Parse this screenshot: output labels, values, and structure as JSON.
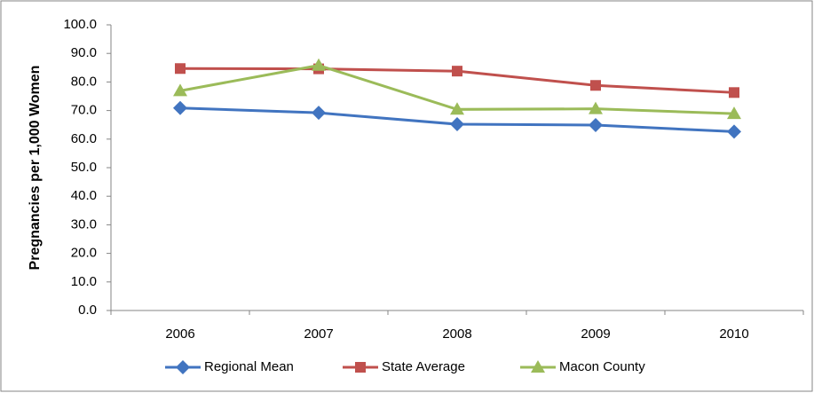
{
  "chart_data": {
    "type": "line",
    "y_label": "Pregnancies per 1,000 Women",
    "categories": [
      "2006",
      "2007",
      "2008",
      "2009",
      "2010"
    ],
    "series": [
      {
        "name": "Regional Mean",
        "color": "#4174c0",
        "marker": "diamond",
        "values": [
          70.9,
          69.2,
          65.2,
          64.9,
          62.6
        ]
      },
      {
        "name": "State Average",
        "color": "#c0504d",
        "marker": "square",
        "values": [
          84.7,
          84.6,
          83.8,
          78.8,
          76.3
        ]
      },
      {
        "name": "Macon County",
        "color": "#9bbb59",
        "marker": "triangle",
        "values": [
          76.9,
          85.8,
          70.4,
          70.6,
          68.9
        ]
      }
    ],
    "ylim": [
      0,
      100
    ],
    "yticks": [
      {
        "value": 0,
        "label": "0.0"
      },
      {
        "value": 10,
        "label": "10.0"
      },
      {
        "value": 20,
        "label": "20.0"
      },
      {
        "value": 30,
        "label": "30.0"
      },
      {
        "value": 40,
        "label": "40.0"
      },
      {
        "value": 50,
        "label": "50.0"
      },
      {
        "value": 60,
        "label": "60.0"
      },
      {
        "value": 70,
        "label": "70.0"
      },
      {
        "value": 80,
        "label": "80.0"
      },
      {
        "value": 90,
        "label": "90.0"
      },
      {
        "value": 100,
        "label": "100.0"
      }
    ],
    "grid": false,
    "legend": "bottom"
  }
}
